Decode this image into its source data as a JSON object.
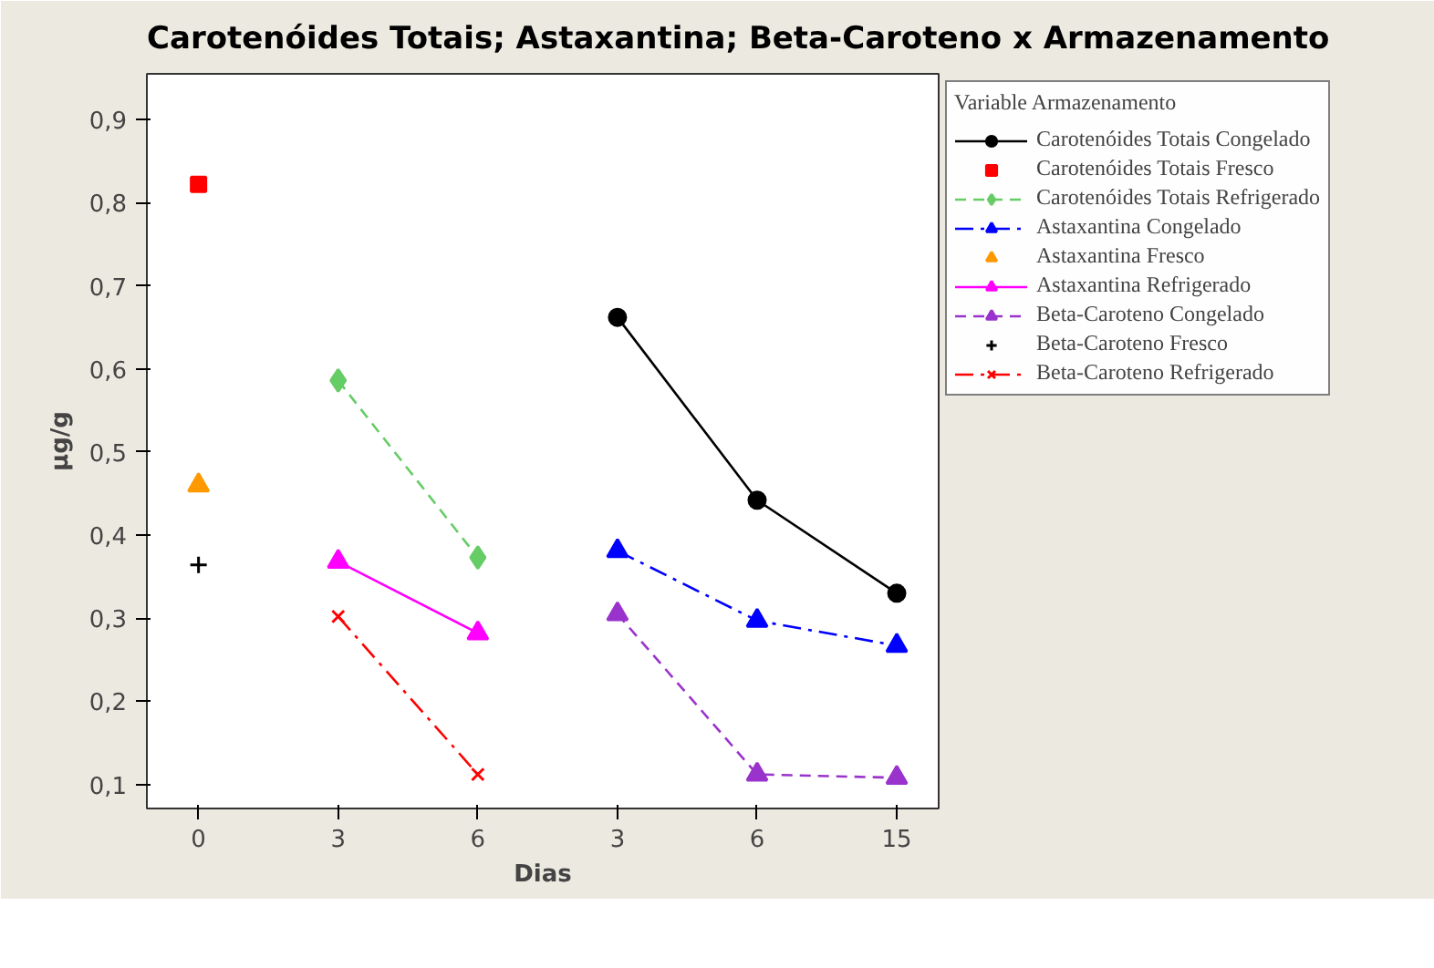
{
  "chart_data": {
    "type": "line",
    "title": "Carotenóides Totais; Astaxantina; Beta-Caroteno  x Armazenamento",
    "xlabel": "Dias",
    "ylabel": "µg/g",
    "legend_title": "Variable Armazenamento",
    "categories": [
      "0",
      "3",
      "6",
      "3",
      "6",
      "15"
    ],
    "ylim": [
      0.071,
      0.955
    ],
    "yticks": [
      {
        "value": 0.1,
        "label": "0,1"
      },
      {
        "value": 0.2,
        "label": "0,2"
      },
      {
        "value": 0.3,
        "label": "0,3"
      },
      {
        "value": 0.4,
        "label": "0,4"
      },
      {
        "value": 0.5,
        "label": "0,5"
      },
      {
        "value": 0.6,
        "label": "0,6"
      },
      {
        "value": 0.7,
        "label": "0,7"
      },
      {
        "value": 0.8,
        "label": "0,8"
      },
      {
        "value": 0.9,
        "label": "0,9"
      }
    ],
    "grid": false,
    "legend": "right",
    "series": [
      {
        "name": "Carotenóides Totais Congelado",
        "color": "#000000",
        "marker": "circle",
        "line_style": "solid",
        "values": [
          null,
          null,
          null,
          0.662,
          0.442,
          0.33
        ]
      },
      {
        "name": "Carotenóides Totais Fresco",
        "color": "#ff0000",
        "marker": "square",
        "line_style": "solid",
        "values": [
          0.822,
          null,
          null,
          null,
          null,
          null
        ]
      },
      {
        "name": "Carotenóides Totais Refrigerado",
        "color": "#66cc66",
        "marker": "diamond",
        "line_style": "dashed",
        "values": [
          null,
          0.586,
          0.373,
          null,
          null,
          null
        ]
      },
      {
        "name": "Astaxantina Congelado",
        "color": "#0000ff",
        "marker": "triangle",
        "line_style": "dashdot",
        "values": [
          null,
          null,
          null,
          0.381,
          0.297,
          0.267
        ]
      },
      {
        "name": "Astaxantina Fresco",
        "color": "#ff9900",
        "marker": "triangle",
        "line_style": "dashed",
        "values": [
          0.46,
          null,
          null,
          null,
          null,
          null
        ]
      },
      {
        "name": "Astaxantina Refrigerado",
        "color": "#ff00ff",
        "marker": "triangle",
        "line_style": "solid",
        "values": [
          null,
          0.368,
          0.282,
          null,
          null,
          null
        ]
      },
      {
        "name": "Beta-Caroteno Congelado",
        "color": "#9933cc",
        "marker": "triangle",
        "line_style": "dashed",
        "values": [
          null,
          null,
          null,
          0.305,
          0.112,
          0.108
        ]
      },
      {
        "name": "Beta-Caroteno Fresco",
        "color": "#000000",
        "marker": "cross",
        "line_style": "dashed",
        "values": [
          0.364,
          null,
          null,
          null,
          null,
          null
        ]
      },
      {
        "name": "Beta-Caroteno Refrigerado",
        "color": "#ff0000",
        "marker": "x",
        "line_style": "dashdot",
        "values": [
          null,
          0.302,
          0.112,
          null,
          null,
          null
        ]
      }
    ]
  }
}
